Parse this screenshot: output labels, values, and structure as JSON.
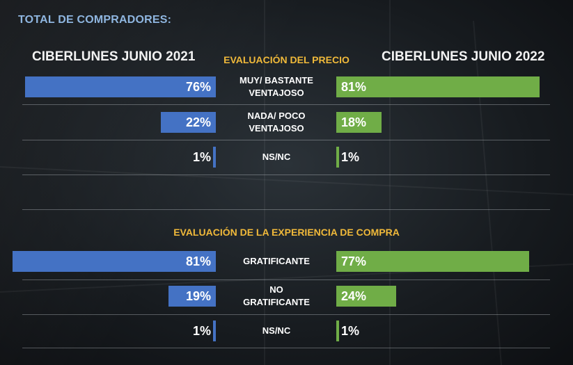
{
  "title": "TOTAL DE COMPRADORES:",
  "year_left": "CIBERLUNES JUNIO 2021",
  "year_right": "CIBERLUNES JUNIO 2022",
  "colors": {
    "left": "#4472c4",
    "right": "#70ad47",
    "section": "#f0b93a",
    "title": "#8fb6e0"
  },
  "chart_data": [
    {
      "type": "bar",
      "title": "EVALUACIÓN DEL PRECIO",
      "categories": [
        "MUY/ BASTANTE VENTAJOSO",
        "NADA/ POCO VENTAJOSO",
        "NS/NC"
      ],
      "category_lines": [
        [
          "MUY/ BASTANTE",
          "VENTAJOSO"
        ],
        [
          "NADA/ POCO",
          "VENTAJOSO"
        ],
        [
          "NS/NC"
        ]
      ],
      "series": [
        {
          "name": "CIBERLUNES JUNIO 2021",
          "values": [
            76,
            22,
            1
          ],
          "labels": [
            "76%",
            "22%",
            "1%"
          ]
        },
        {
          "name": "CIBERLUNES JUNIO 2022",
          "values": [
            81,
            18,
            1
          ],
          "labels": [
            "81%",
            "18%",
            "1%"
          ]
        }
      ]
    },
    {
      "type": "bar",
      "title": "EVALUACIÓN  DE LA EXPERIENCIA DE COMPRA",
      "categories": [
        "GRATIFICANTE",
        "NO GRATIFICANTE",
        "NS/NC"
      ],
      "category_lines": [
        [
          "GRATIFICANTE"
        ],
        [
          "NO",
          "GRATIFICANTE"
        ],
        [
          "NS/NC"
        ]
      ],
      "series": [
        {
          "name": "CIBERLUNES JUNIO 2021",
          "values": [
            81,
            19,
            1
          ],
          "labels": [
            "81%",
            "19%",
            "1%"
          ]
        },
        {
          "name": "CIBERLUNES JUNIO 2022",
          "values": [
            77,
            24,
            1
          ],
          "labels": [
            "77%",
            "24%",
            "1%"
          ]
        }
      ]
    }
  ]
}
